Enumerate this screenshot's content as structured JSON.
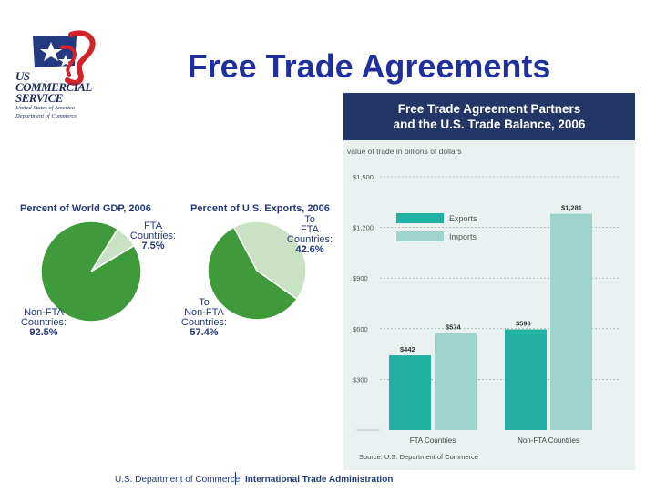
{
  "slide": {
    "title": "Free Trade Agreements"
  },
  "logo": {
    "line1": "US",
    "line2": "COMMERCIAL",
    "line3": "SERVICE",
    "line4": "United States of America",
    "line5": "Department of Commerce"
  },
  "footer": {
    "left": "U.S. Department of Commerce",
    "right": "International Trade Administration"
  },
  "colors": {
    "pie_dark": "#3e9a3a",
    "pie_light": "#c9e2c4",
    "exports": "#22b0a2",
    "imports": "#9fd4cc",
    "header_bg": "#223768",
    "title": "#1f2f9b"
  },
  "chart_data": [
    {
      "type": "pie",
      "title": "Percent of World GDP, 2006",
      "slices": [
        {
          "label_lines": [
            "FTA",
            "Countries:"
          ],
          "value_text": "7.5%",
          "value": 7.5
        },
        {
          "label_lines": [
            "Non-FTA",
            "Countries:"
          ],
          "value_text": "92.5%",
          "value": 92.5
        }
      ]
    },
    {
      "type": "pie",
      "title": "Percent of U.S. Exports, 2006",
      "slices": [
        {
          "label_lines": [
            "To",
            "FTA",
            "Countries:"
          ],
          "value_text": "42.6%",
          "value": 42.6
        },
        {
          "label_lines": [
            "To",
            "Non-FTA",
            "Countries:"
          ],
          "value_text": "57.4%",
          "value": 57.4
        }
      ]
    },
    {
      "type": "bar",
      "title_lines": [
        "Free Trade Agreement Partners",
        "and the U.S. Trade Balance, 2006"
      ],
      "subtitle": "value of trade in billions of dollars",
      "categories": [
        "FTA Countries",
        "Non-FTA Countries"
      ],
      "series": [
        {
          "name": "Exports",
          "values": [
            442,
            596
          ],
          "labels": [
            "$442",
            "$596"
          ]
        },
        {
          "name": "Imports",
          "values": [
            574,
            1281
          ],
          "labels": [
            "$574",
            "$1,281"
          ]
        }
      ],
      "yticks": [
        {
          "value": 300,
          "label": "$300"
        },
        {
          "value": 600,
          "label": "$600"
        },
        {
          "value": 900,
          "label": "$900"
        },
        {
          "value": 1200,
          "label": "$1,200"
        },
        {
          "value": 1500,
          "label": "$1,500"
        }
      ],
      "ylim": [
        0,
        1500
      ],
      "legend_placement": "top-left",
      "source": "Source: U.S. Department of Commerce"
    }
  ]
}
